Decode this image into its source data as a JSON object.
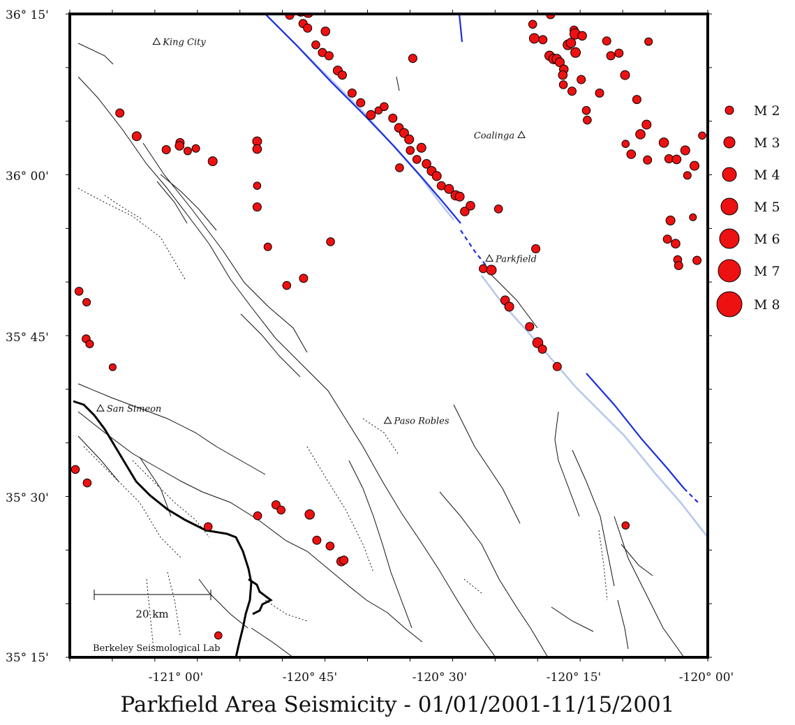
{
  "title": "Parkfield Area Seismicity - 01/01/2001-11/15/2001",
  "credit": "Berkeley Seismological Lab",
  "scale_bar": {
    "label": "20 km",
    "km": 20
  },
  "lat_labels": [
    "36° 15'",
    "36° 00'",
    "35° 45'",
    "35° 30'",
    "35° 15'"
  ],
  "lon_labels": [
    "-121° 00'",
    "-120° 45'",
    "-120° 30'",
    "-120° 15'",
    "-120° 00'"
  ],
  "towns": [
    {
      "name": "King City",
      "lon": -121.08,
      "lat": 36.207
    },
    {
      "name": "Coalinga",
      "lon": -120.365,
      "lat": 36.062
    },
    {
      "name": "Parkfield",
      "lon": -120.428,
      "lat": 35.87
    },
    {
      "name": "Paso Robles",
      "lon": -120.627,
      "lat": 35.618
    },
    {
      "name": "San Simeon",
      "lon": -121.19,
      "lat": 35.637
    }
  ],
  "legend": [
    {
      "label": "M 2",
      "mag": 2
    },
    {
      "label": "M 3",
      "mag": 3
    },
    {
      "label": "M 4",
      "mag": 4
    },
    {
      "label": "M 5",
      "mag": 5
    },
    {
      "label": "M 6",
      "mag": 6
    },
    {
      "label": "M 7",
      "mag": 7
    },
    {
      "label": "M 8",
      "mag": 8
    }
  ],
  "colors": {
    "quake": "#ee1111",
    "saf_active": "#1a2fe0",
    "saf_inactive": "#b8c8ee",
    "coast": "#000000"
  },
  "quakes": [
    [
      -120.819,
      36.248,
      2.6
    ],
    [
      -120.797,
      36.254,
      3.0
    ],
    [
      -120.783,
      36.253,
      3.3
    ],
    [
      -120.793,
      36.235,
      2.6
    ],
    [
      -120.784,
      36.228,
      2.6
    ],
    [
      -120.749,
      36.223,
      2.7
    ],
    [
      -120.768,
      36.202,
      2.5
    ],
    [
      -120.755,
      36.19,
      2.6
    ],
    [
      -120.742,
      36.185,
      2.6
    ],
    [
      -120.725,
      36.162,
      2.8
    ],
    [
      -120.716,
      36.155,
      2.6
    ],
    [
      -120.697,
      36.127,
      2.6
    ],
    [
      -120.68,
      36.112,
      2.6
    ],
    [
      -120.645,
      36.1,
      2.3
    ],
    [
      -120.634,
      36.106,
      2.5
    ],
    [
      -120.66,
      36.093,
      2.8
    ],
    [
      -120.617,
      36.088,
      2.6
    ],
    [
      -120.605,
      36.073,
      2.7
    ],
    [
      -120.595,
      36.065,
      2.8
    ],
    [
      -120.585,
      36.055,
      2.8
    ],
    [
      -120.561,
      36.042,
      2.8
    ],
    [
      -120.57,
      36.024,
      2.5
    ],
    [
      -120.551,
      36.017,
      2.7
    ],
    [
      -120.541,
      36.006,
      2.8
    ],
    [
      -120.531,
      35.998,
      2.8
    ],
    [
      -120.522,
      35.983,
      2.6
    ],
    [
      -120.507,
      35.978,
      2.8
    ],
    [
      -120.494,
      35.968,
      2.9
    ],
    [
      -120.486,
      35.966,
      2.8
    ],
    [
      -120.476,
      35.943,
      2.7
    ],
    [
      -120.604,
      36.011,
      2.5
    ],
    [
      -120.465,
      35.952,
      2.7
    ],
    [
      -120.578,
      36.181,
      2.6
    ],
    [
      -120.583,
      36.038,
      2.5
    ],
    [
      -120.44,
      35.854,
      2.5
    ],
    [
      -120.424,
      35.852,
      3.0
    ],
    [
      -120.397,
      35.805,
      2.7
    ],
    [
      -120.389,
      35.795,
      2.8
    ],
    [
      -120.349,
      35.764,
      2.6
    ],
    [
      -120.333,
      35.739,
      3.1
    ],
    [
      -120.324,
      35.729,
      2.6
    ],
    [
      -120.295,
      35.702,
      2.6
    ],
    [
      -120.41,
      35.947,
      2.5
    ],
    [
      -120.337,
      35.885,
      2.6
    ],
    [
      -120.343,
      36.234,
      2.5
    ],
    [
      -120.34,
      36.212,
      3.0
    ],
    [
      -120.323,
      36.21,
      2.6
    ],
    [
      -120.308,
      36.249,
      2.6
    ],
    [
      -120.31,
      36.185,
      2.9
    ],
    [
      -120.302,
      36.18,
      3.0
    ],
    [
      -120.296,
      36.18,
      2.9
    ],
    [
      -120.29,
      36.175,
      2.8
    ],
    [
      -120.282,
      36.164,
      2.7
    ],
    [
      -120.284,
      36.155,
      2.7
    ],
    [
      -120.266,
      36.13,
      2.6
    ],
    [
      -120.283,
      36.14,
      2.5
    ],
    [
      -120.274,
      36.202,
      3.0
    ],
    [
      -120.262,
      36.225,
      2.5
    ],
    [
      -120.268,
      36.205,
      2.9
    ],
    [
      -120.26,
      36.219,
      3.2
    ],
    [
      -120.259,
      36.19,
      3.0
    ],
    [
      -120.246,
      36.216,
      2.7
    ],
    [
      -120.248,
      36.148,
      2.6
    ],
    [
      -120.238,
      36.1,
      2.5
    ],
    [
      -120.236,
      36.085,
      2.5
    ],
    [
      -120.212,
      36.127,
      2.6
    ],
    [
      -120.198,
      36.208,
      2.6
    ],
    [
      -120.19,
      36.185,
      2.6
    ],
    [
      -120.174,
      36.189,
      2.6
    ],
    [
      -120.162,
      36.155,
      2.8
    ],
    [
      -120.132,
      36.063,
      2.9
    ],
    [
      -120.139,
      36.117,
      2.6
    ],
    [
      -120.15,
      36.032,
      2.7
    ],
    [
      -120.161,
      36.048,
      2.3
    ],
    [
      -120.118,
      36.023,
      2.6
    ],
    [
      -120.12,
      36.078,
      2.8
    ],
    [
      -120.116,
      36.207,
      2.4
    ],
    [
      -120.086,
      36.05,
      2.9
    ],
    [
      -120.076,
      36.025,
      2.6
    ],
    [
      -120.073,
      35.929,
      2.8
    ],
    [
      -120.079,
      35.9,
      2.6
    ],
    [
      -120.061,
      36.024,
      2.7
    ],
    [
      -120.044,
      36.038,
      2.8
    ],
    [
      -120.04,
      35.999,
      2.4
    ],
    [
      -120.026,
      36.014,
      2.8
    ],
    [
      -120.011,
      36.061,
      2.3
    ],
    [
      -120.021,
      35.867,
      2.6
    ],
    [
      -120.063,
      35.893,
      2.7
    ],
    [
      -120.059,
      35.868,
      2.5
    ],
    [
      -120.057,
      35.859,
      2.6
    ],
    [
      -120.029,
      35.934,
      2.2
    ],
    [
      -119.994,
      35.956,
      2.4
    ],
    [
      -119.975,
      36.054,
      2.5
    ],
    [
      -120.161,
      35.455,
      2.3
    ],
    [
      -119.993,
      35.488,
      2.6
    ],
    [
      -121.152,
      36.096,
      2.6
    ],
    [
      -121.119,
      36.06,
      2.8
    ],
    [
      -121.061,
      36.039,
      2.6
    ],
    [
      -121.034,
      36.05,
      2.6
    ],
    [
      -121.035,
      36.045,
      2.7
    ],
    [
      -121.019,
      36.037,
      2.4
    ],
    [
      -121.003,
      36.041,
      2.4
    ],
    [
      -120.97,
      36.021,
      2.8
    ],
    [
      -120.883,
      35.95,
      2.6
    ],
    [
      -120.883,
      36.052,
      2.8
    ],
    [
      -120.883,
      36.04,
      2.7
    ],
    [
      -120.883,
      35.983,
      2.3
    ],
    [
      -120.862,
      35.888,
      2.4
    ],
    [
      -120.739,
      35.896,
      2.5
    ],
    [
      -120.792,
      35.839,
      2.6
    ],
    [
      -120.825,
      35.828,
      2.5
    ],
    [
      -121.232,
      35.819,
      2.5
    ],
    [
      -121.217,
      35.802,
      2.4
    ],
    [
      -121.218,
      35.745,
      2.5
    ],
    [
      -121.211,
      35.737,
      2.4
    ],
    [
      -121.166,
      35.701,
      2.2
    ],
    [
      -121.239,
      35.542,
      2.5
    ],
    [
      -121.216,
      35.521,
      2.5
    ],
    [
      -120.979,
      35.453,
      2.5
    ],
    [
      -120.882,
      35.47,
      2.5
    ],
    [
      -120.846,
      35.487,
      2.6
    ],
    [
      -120.836,
      35.479,
      2.5
    ],
    [
      -120.78,
      35.472,
      2.9
    ],
    [
      -120.766,
      35.432,
      2.6
    ],
    [
      -120.74,
      35.423,
      2.5
    ],
    [
      -120.718,
      35.399,
      2.8
    ],
    [
      -120.713,
      35.401,
      2.6
    ],
    [
      -120.959,
      35.284,
      2.3
    ]
  ]
}
